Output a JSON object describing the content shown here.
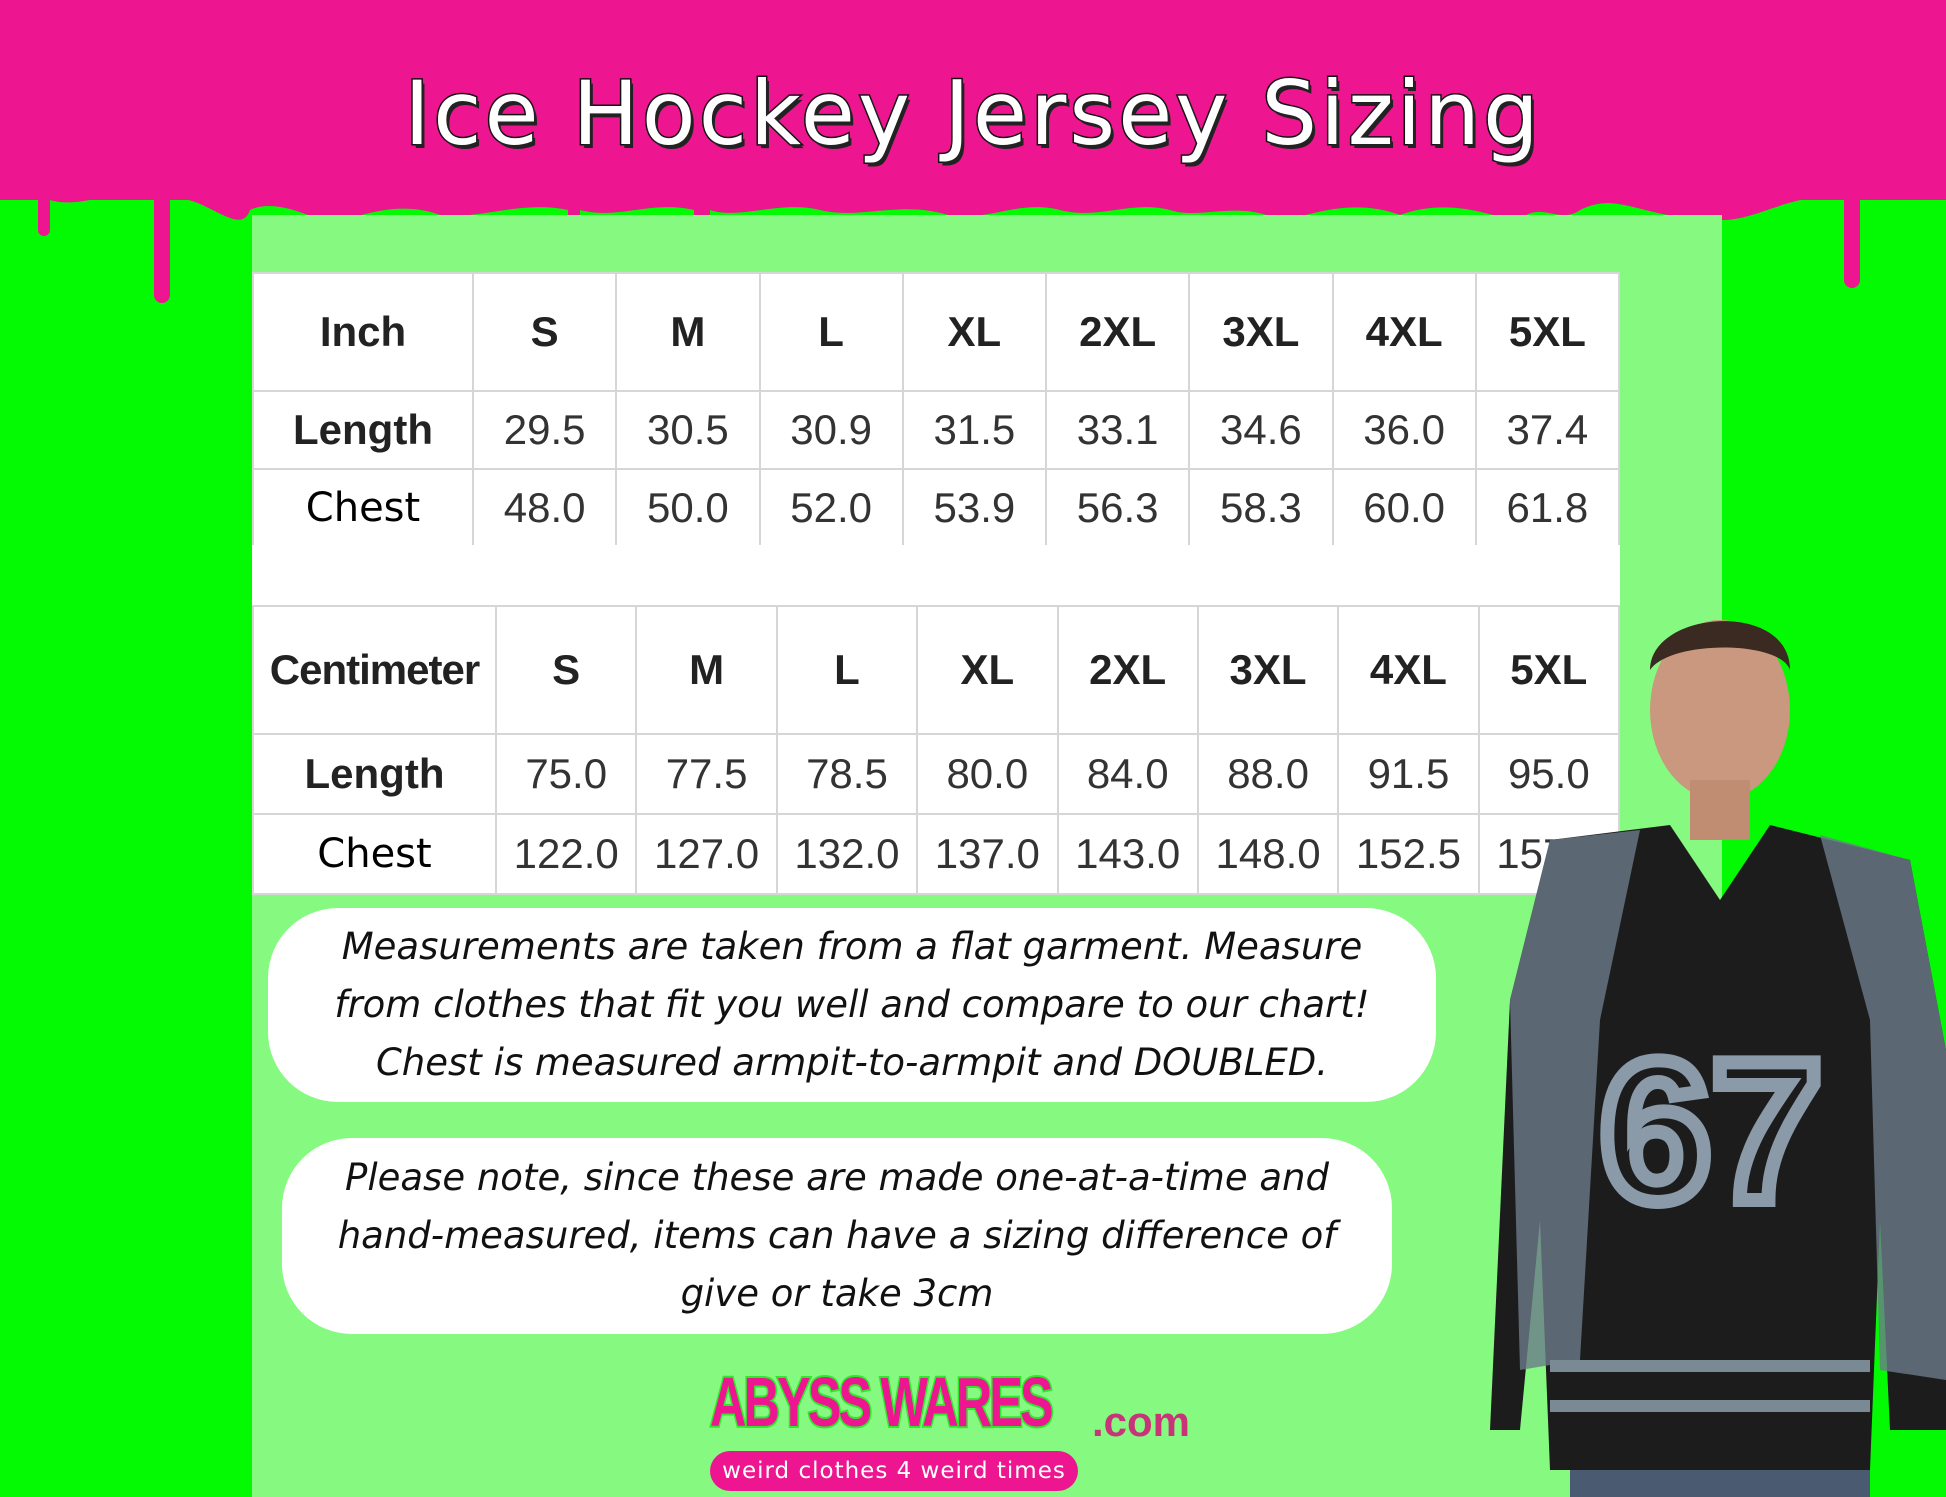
{
  "title": "Ice Hockey Jersey Sizing",
  "colors": {
    "pink": "#ee1590",
    "bright_green": "#03fa03",
    "light_green": "#86fa80"
  },
  "inch_table": {
    "unit": "Inch",
    "sizes": [
      "S",
      "M",
      "L",
      "XL",
      "2XL",
      "3XL",
      "4XL",
      "5XL"
    ],
    "rows": [
      {
        "label": "Length",
        "values": [
          "29.5",
          "30.5",
          "30.9",
          "31.5",
          "33.1",
          "34.6",
          "36.0",
          "37.4"
        ]
      },
      {
        "label": "Chest",
        "values": [
          "48.0",
          "50.0",
          "52.0",
          "53.9",
          "56.3",
          "58.3",
          "60.0",
          "61.8"
        ]
      }
    ]
  },
  "cm_table": {
    "unit": "Centimeter",
    "sizes": [
      "S",
      "M",
      "L",
      "XL",
      "2XL",
      "3XL",
      "4XL",
      "5XL"
    ],
    "rows": [
      {
        "label": "Length",
        "values": [
          "75.0",
          "77.5",
          "78.5",
          "80.0",
          "84.0",
          "88.0",
          "91.5",
          "95.0"
        ]
      },
      {
        "label": "Chest",
        "values": [
          "122.0",
          "127.0",
          "132.0",
          "137.0",
          "143.0",
          "148.0",
          "152.5",
          "157.0"
        ]
      }
    ]
  },
  "notes": [
    "Measurements are taken from a flat garment. Measure from clothes that fit you well and compare to our chart! Chest is measured armpit-to-armpit and DOUBLED.",
    "Please note, since these are made one-at-a-time and hand-measured, items can have a sizing difference of give or take 3cm"
  ],
  "logo": {
    "brand": "ABYSS WARES",
    "domain": ".com",
    "tagline": "weird clothes 4 weird times"
  },
  "model": {
    "jersey_number": "67"
  }
}
